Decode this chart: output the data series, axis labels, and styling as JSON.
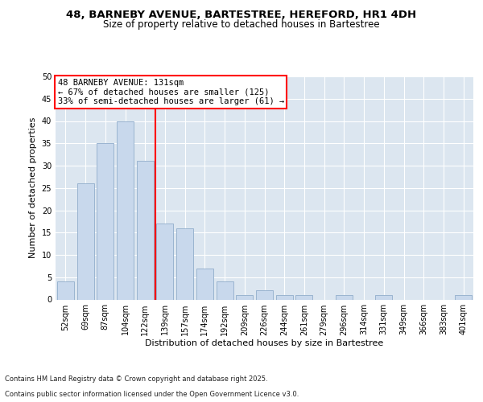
{
  "title1": "48, BARNEBY AVENUE, BARTESTREE, HEREFORD, HR1 4DH",
  "title2": "Size of property relative to detached houses in Bartestree",
  "xlabel": "Distribution of detached houses by size in Bartestree",
  "ylabel": "Number of detached properties",
  "categories": [
    "52sqm",
    "69sqm",
    "87sqm",
    "104sqm",
    "122sqm",
    "139sqm",
    "157sqm",
    "174sqm",
    "192sqm",
    "209sqm",
    "226sqm",
    "244sqm",
    "261sqm",
    "279sqm",
    "296sqm",
    "314sqm",
    "331sqm",
    "349sqm",
    "366sqm",
    "383sqm",
    "401sqm"
  ],
  "values": [
    4,
    26,
    35,
    40,
    31,
    17,
    16,
    7,
    4,
    1,
    2,
    1,
    1,
    0,
    1,
    0,
    1,
    0,
    0,
    0,
    1
  ],
  "bar_color": "#c8d8ec",
  "bar_edge_color": "#9ab4d0",
  "vline_x": 4.5,
  "vline_color": "red",
  "annotation_title": "48 BARNEBY AVENUE: 131sqm",
  "annotation_line1": "← 67% of detached houses are smaller (125)",
  "annotation_line2": "33% of semi-detached houses are larger (61) →",
  "annotation_box_color": "white",
  "annotation_box_edge_color": "red",
  "ylim": [
    0,
    50
  ],
  "yticks": [
    0,
    5,
    10,
    15,
    20,
    25,
    30,
    35,
    40,
    45,
    50
  ],
  "footer1": "Contains HM Land Registry data © Crown copyright and database right 2025.",
  "footer2": "Contains public sector information licensed under the Open Government Licence v3.0.",
  "fig_bg_color": "#ffffff",
  "plot_bg_color": "#dce6f0",
  "title_fontsize": 9.5,
  "subtitle_fontsize": 8.5,
  "label_fontsize": 8,
  "tick_fontsize": 7,
  "annotation_fontsize": 7.5,
  "footer_fontsize": 6
}
